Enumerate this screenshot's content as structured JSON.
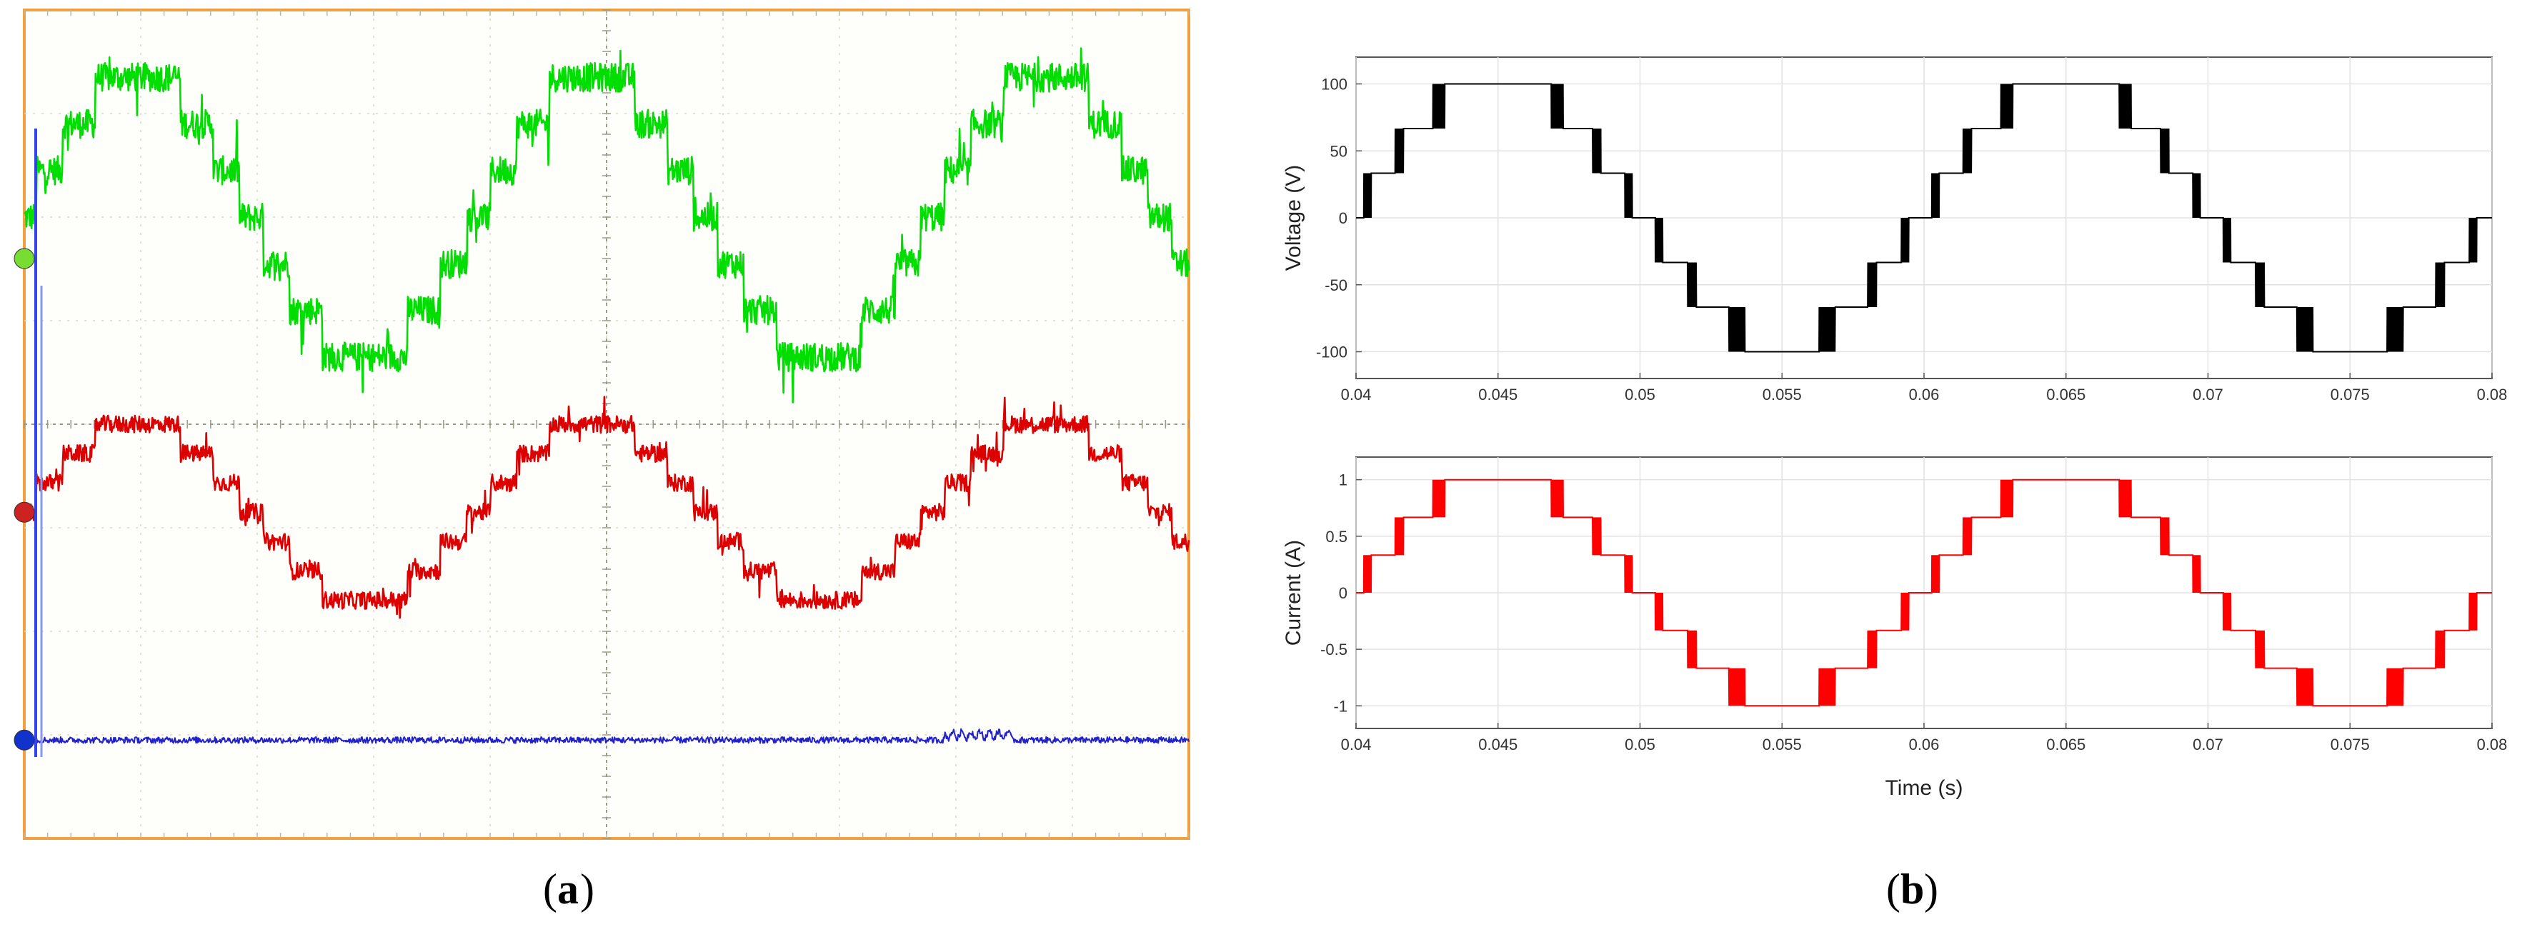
{
  "captions": {
    "a": "a",
    "b": "b"
  },
  "chart_data": [
    {
      "type": "line",
      "panel": "a",
      "grid": true,
      "xlim": [
        0,
        10
      ],
      "ylim": [
        -4,
        4
      ],
      "series": [
        {
          "color": "#00dd00",
          "step_levels": 7,
          "amplitude": 1.35,
          "offset": 2.0,
          "period": 3.9,
          "phase_deg": 0
        },
        {
          "color": "#dd0000",
          "step_levels": 7,
          "amplitude": 0.85,
          "offset": -0.85,
          "period": 3.9,
          "phase_deg": 0
        },
        {
          "color": "#2222cc",
          "amplitude": 0.0,
          "offset": -3.05,
          "spike": true
        }
      ],
      "markers": [
        {
          "color": "#77dd33",
          "y": 1.6
        },
        {
          "color": "#cc2222",
          "y": -0.85
        },
        {
          "color": "#1133cc",
          "y": -3.05
        }
      ]
    },
    {
      "type": "line",
      "panel": "b-top",
      "ylabel": "Voltage (V)",
      "xlim": [
        0.04,
        0.08
      ],
      "ylim": [
        -120,
        120
      ],
      "xticks": [
        "0.04",
        "0.045",
        "0.05",
        "0.055",
        "0.06",
        "0.065",
        "0.07",
        "0.075",
        "0.08"
      ],
      "xtick_values": [
        0.04,
        0.045,
        0.05,
        0.055,
        0.06,
        0.065,
        0.07,
        0.075,
        0.08
      ],
      "yticks": [
        "100",
        "50",
        "0",
        "-50",
        "-100"
      ],
      "ytick_values": [
        100,
        50,
        0,
        -50,
        -100
      ],
      "grid": true,
      "series": [
        {
          "color": "#000000",
          "amplitude": 100,
          "frequency_hz": 50,
          "step_levels": 7,
          "shape": "multilevel-staircase"
        }
      ]
    },
    {
      "type": "line",
      "panel": "b-bottom",
      "ylabel": "Current (A)",
      "xlabel": "Time (s)",
      "xlim": [
        0.04,
        0.08
      ],
      "ylim": [
        -1.2,
        1.2
      ],
      "xticks": [
        "0.04",
        "0.045",
        "0.05",
        "0.055",
        "0.06",
        "0.065",
        "0.07",
        "0.075",
        "0.08"
      ],
      "xtick_values": [
        0.04,
        0.045,
        0.05,
        0.055,
        0.06,
        0.065,
        0.07,
        0.075,
        0.08
      ],
      "yticks": [
        "1",
        "0.5",
        "0",
        "-0.5",
        "-1"
      ],
      "ytick_values": [
        1,
        0.5,
        0,
        -0.5,
        -1
      ],
      "grid": true,
      "series": [
        {
          "color": "#ff0000",
          "amplitude": 1,
          "frequency_hz": 50,
          "step_levels": 7,
          "shape": "multilevel-staircase"
        }
      ]
    }
  ]
}
